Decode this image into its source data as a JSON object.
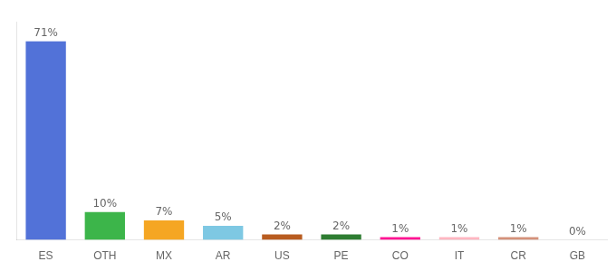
{
  "chart_data": {
    "type": "bar",
    "categories": [
      "ES",
      "OTH",
      "MX",
      "AR",
      "US",
      "PE",
      "CO",
      "IT",
      "CR",
      "GB"
    ],
    "values": [
      71,
      10,
      7,
      5,
      2,
      2,
      1,
      1,
      1,
      0
    ],
    "value_labels": [
      "71%",
      "10%",
      "7%",
      "5%",
      "2%",
      "2%",
      "1%",
      "1%",
      "1%",
      "0%"
    ],
    "colors": [
      "#5272D8",
      "#3CB54A",
      "#F5A623",
      "#7EC8E3",
      "#B85C20",
      "#2E7D32",
      "#FF1493",
      "#FFB6C1",
      "#D4917A",
      "#CCCCCC"
    ],
    "ylim": [
      0,
      78
    ],
    "data_labels": true,
    "tick_labels": "x",
    "grid": false
  }
}
